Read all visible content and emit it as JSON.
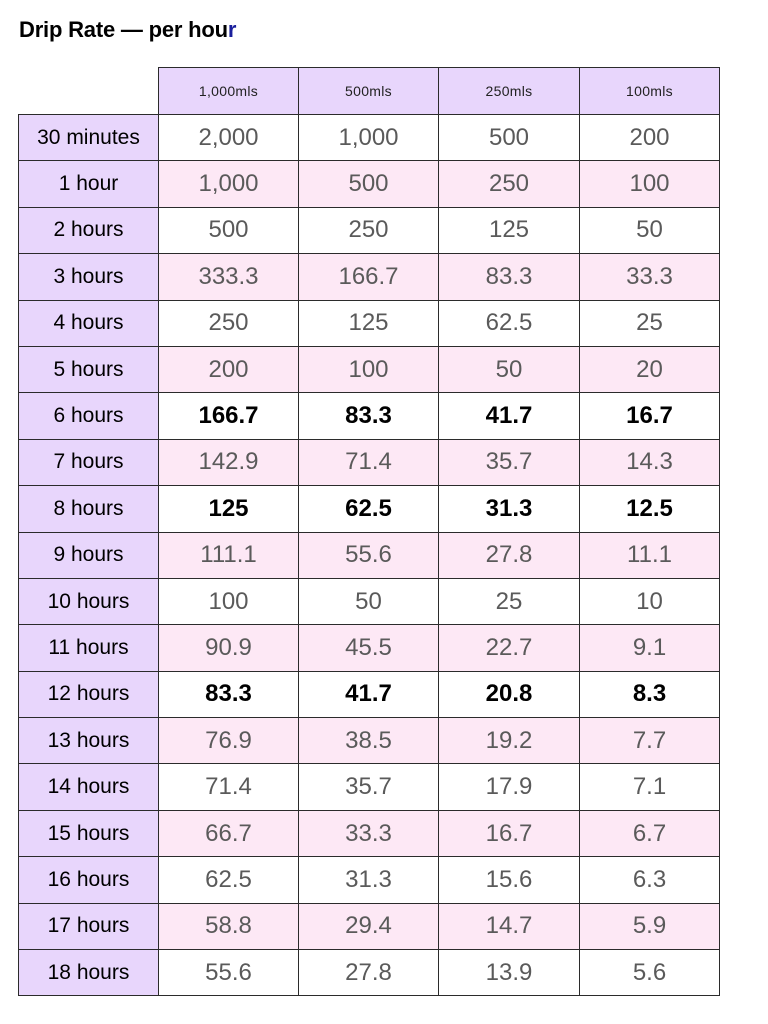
{
  "title": {
    "main": "Drip Rate — per hou",
    "accent": "r"
  },
  "table": {
    "columns": [
      "1,000mls",
      "500mls",
      "250mls",
      "100mls"
    ],
    "rows": [
      {
        "label": "30 minutes",
        "values": [
          "2,000",
          "1,000",
          "500",
          "200"
        ],
        "bold": false
      },
      {
        "label": "1 hour",
        "values": [
          "1,000",
          "500",
          "250",
          "100"
        ],
        "bold": false
      },
      {
        "label": "2 hours",
        "values": [
          "500",
          "250",
          "125",
          "50"
        ],
        "bold": false
      },
      {
        "label": "3 hours",
        "values": [
          "333.3",
          "166.7",
          "83.3",
          "33.3"
        ],
        "bold": false
      },
      {
        "label": "4 hours",
        "values": [
          "250",
          "125",
          "62.5",
          "25"
        ],
        "bold": false
      },
      {
        "label": "5 hours",
        "values": [
          "200",
          "100",
          "50",
          "20"
        ],
        "bold": false
      },
      {
        "label": "6 hours",
        "values": [
          "166.7",
          "83.3",
          "41.7",
          "16.7"
        ],
        "bold": true
      },
      {
        "label": "7 hours",
        "values": [
          "142.9",
          "71.4",
          "35.7",
          "14.3"
        ],
        "bold": false
      },
      {
        "label": "8 hours",
        "values": [
          "125",
          "62.5",
          "31.3",
          "12.5"
        ],
        "bold": true
      },
      {
        "label": "9 hours",
        "values": [
          "111.1",
          "55.6",
          "27.8",
          "11.1"
        ],
        "bold": false
      },
      {
        "label": "10 hours",
        "values": [
          "100",
          "50",
          "25",
          "10"
        ],
        "bold": false
      },
      {
        "label": "11 hours",
        "values": [
          "90.9",
          "45.5",
          "22.7",
          "9.1"
        ],
        "bold": false
      },
      {
        "label": "12 hours",
        "values": [
          "83.3",
          "41.7",
          "20.8",
          "8.3"
        ],
        "bold": true
      },
      {
        "label": "13 hours",
        "values": [
          "76.9",
          "38.5",
          "19.2",
          "7.7"
        ],
        "bold": false
      },
      {
        "label": "14 hours",
        "values": [
          "71.4",
          "35.7",
          "17.9",
          "7.1"
        ],
        "bold": false
      },
      {
        "label": "15 hours",
        "values": [
          "66.7",
          "33.3",
          "16.7",
          "6.7"
        ],
        "bold": false
      },
      {
        "label": "16 hours",
        "values": [
          "62.5",
          "31.3",
          "15.6",
          "6.3"
        ],
        "bold": false
      },
      {
        "label": "17 hours",
        "values": [
          "58.8",
          "29.4",
          "14.7",
          "5.9"
        ],
        "bold": false
      },
      {
        "label": "18 hours",
        "values": [
          "55.6",
          "27.8",
          "13.9",
          "5.6"
        ],
        "bold": false
      }
    ]
  },
  "colors": {
    "header_bg": "#e8d6fc",
    "stripe_bg": "#fde8f5",
    "title_accent": "#1a1f9c"
  }
}
